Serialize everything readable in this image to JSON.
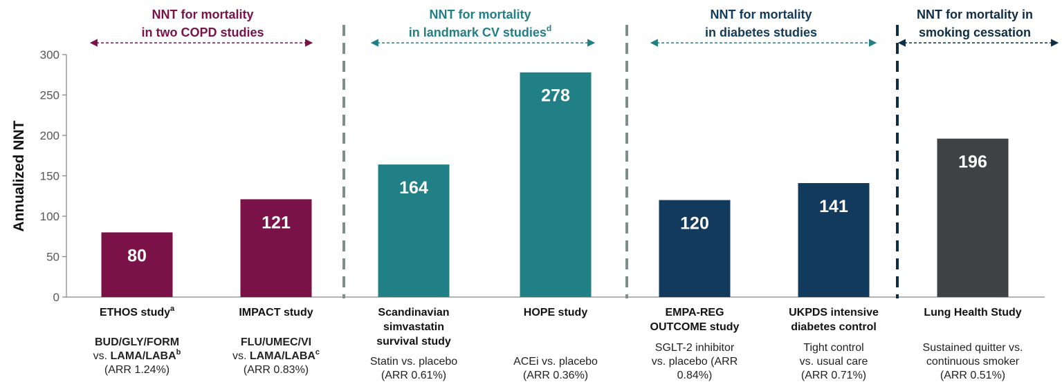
{
  "colors": {
    "copd": "#7a1248",
    "cv": "#217f86",
    "diabetes": "#113a5c",
    "smoking": "#3f4244",
    "axis": "#888888",
    "divider_light": "#7d8f8b",
    "divider_dark": "#0f2d44"
  },
  "chart_data": {
    "type": "bar",
    "title": "",
    "xlabel": "",
    "ylabel": "Annualized NNT",
    "ylim": [
      0,
      300
    ],
    "yticks": [
      0,
      50,
      100,
      150,
      200,
      250,
      300
    ],
    "grid": false,
    "groups": [
      {
        "id": "copd",
        "title": [
          "NNT for mortality",
          "in two COPD studies"
        ],
        "sup": "",
        "color_key": "copd"
      },
      {
        "id": "cv",
        "title": [
          "NNT for mortality",
          "in landmark  CV studies"
        ],
        "sup": "d",
        "color_key": "cv"
      },
      {
        "id": "diabetes",
        "title": [
          "NNT for mortality",
          "in diabetes  studies"
        ],
        "sup": "",
        "color_key": "diabetes"
      },
      {
        "id": "smoking",
        "title": [
          "NNT for mortality  in",
          "smoking  cessation"
        ],
        "sup": "",
        "color_key": "smoking"
      }
    ],
    "bars": [
      {
        "group": "copd",
        "value": 80,
        "label": "80",
        "name": [
          {
            "text": "ETHOS study",
            "sup": "a"
          }
        ],
        "note_bold": [
          {
            "text": "BUD/GLY/FORM",
            "sup": ""
          },
          {
            "text": "vs. LAMA/LABA",
            "sup": "b",
            "bold_from": 4
          }
        ],
        "note": [
          "(ARR 1.24%)"
        ]
      },
      {
        "group": "copd",
        "value": 121,
        "label": "121",
        "name": [
          {
            "text": "IMPACT study",
            "sup": ""
          }
        ],
        "note_bold": [
          {
            "text": "FLU/UMEC/VI",
            "sup": ""
          },
          {
            "text": "vs. LAMA/LABA",
            "sup": "c",
            "bold_from": 4
          }
        ],
        "note": [
          "(ARR 0.83%)"
        ]
      },
      {
        "group": "cv",
        "value": 164,
        "label": "164",
        "name": [
          {
            "text": "Scandinavian",
            "sup": ""
          },
          {
            "text": "simvastatin",
            "sup": ""
          },
          {
            "text": "survival study",
            "sup": ""
          }
        ],
        "note_bold": [],
        "note": [
          "Statin vs. placebo",
          "(ARR 0.61%)"
        ]
      },
      {
        "group": "cv",
        "value": 278,
        "label": "278",
        "name": [
          {
            "text": "HOPE study",
            "sup": ""
          }
        ],
        "note_bold": [],
        "note": [
          "ACEi vs. placebo",
          "(ARR 0.36%)"
        ]
      },
      {
        "group": "diabetes",
        "value": 120,
        "label": "120",
        "name": [
          {
            "text": "EMPA-REG",
            "sup": ""
          },
          {
            "text": "OUTCOME study",
            "sup": ""
          }
        ],
        "note_bold": [],
        "note": [
          "SGLT-2 inhibitor",
          "vs. placebo (ARR",
          "0.84%)"
        ]
      },
      {
        "group": "diabetes",
        "value": 141,
        "label": "141",
        "name": [
          {
            "text": "UKPDS intensive",
            "sup": ""
          },
          {
            "text": "diabetes control",
            "sup": ""
          }
        ],
        "note_bold": [],
        "note": [
          "Tight control",
          "vs. usual care",
          "(ARR 0.71%)"
        ]
      },
      {
        "group": "smoking",
        "value": 196,
        "label": "196",
        "name": [
          {
            "text": "Lung Health Study",
            "sup": ""
          }
        ],
        "note_bold": [],
        "note": [
          "Sustained quitter vs.",
          "continuous smoker",
          "(ARR 0.51%)"
        ]
      }
    ]
  }
}
